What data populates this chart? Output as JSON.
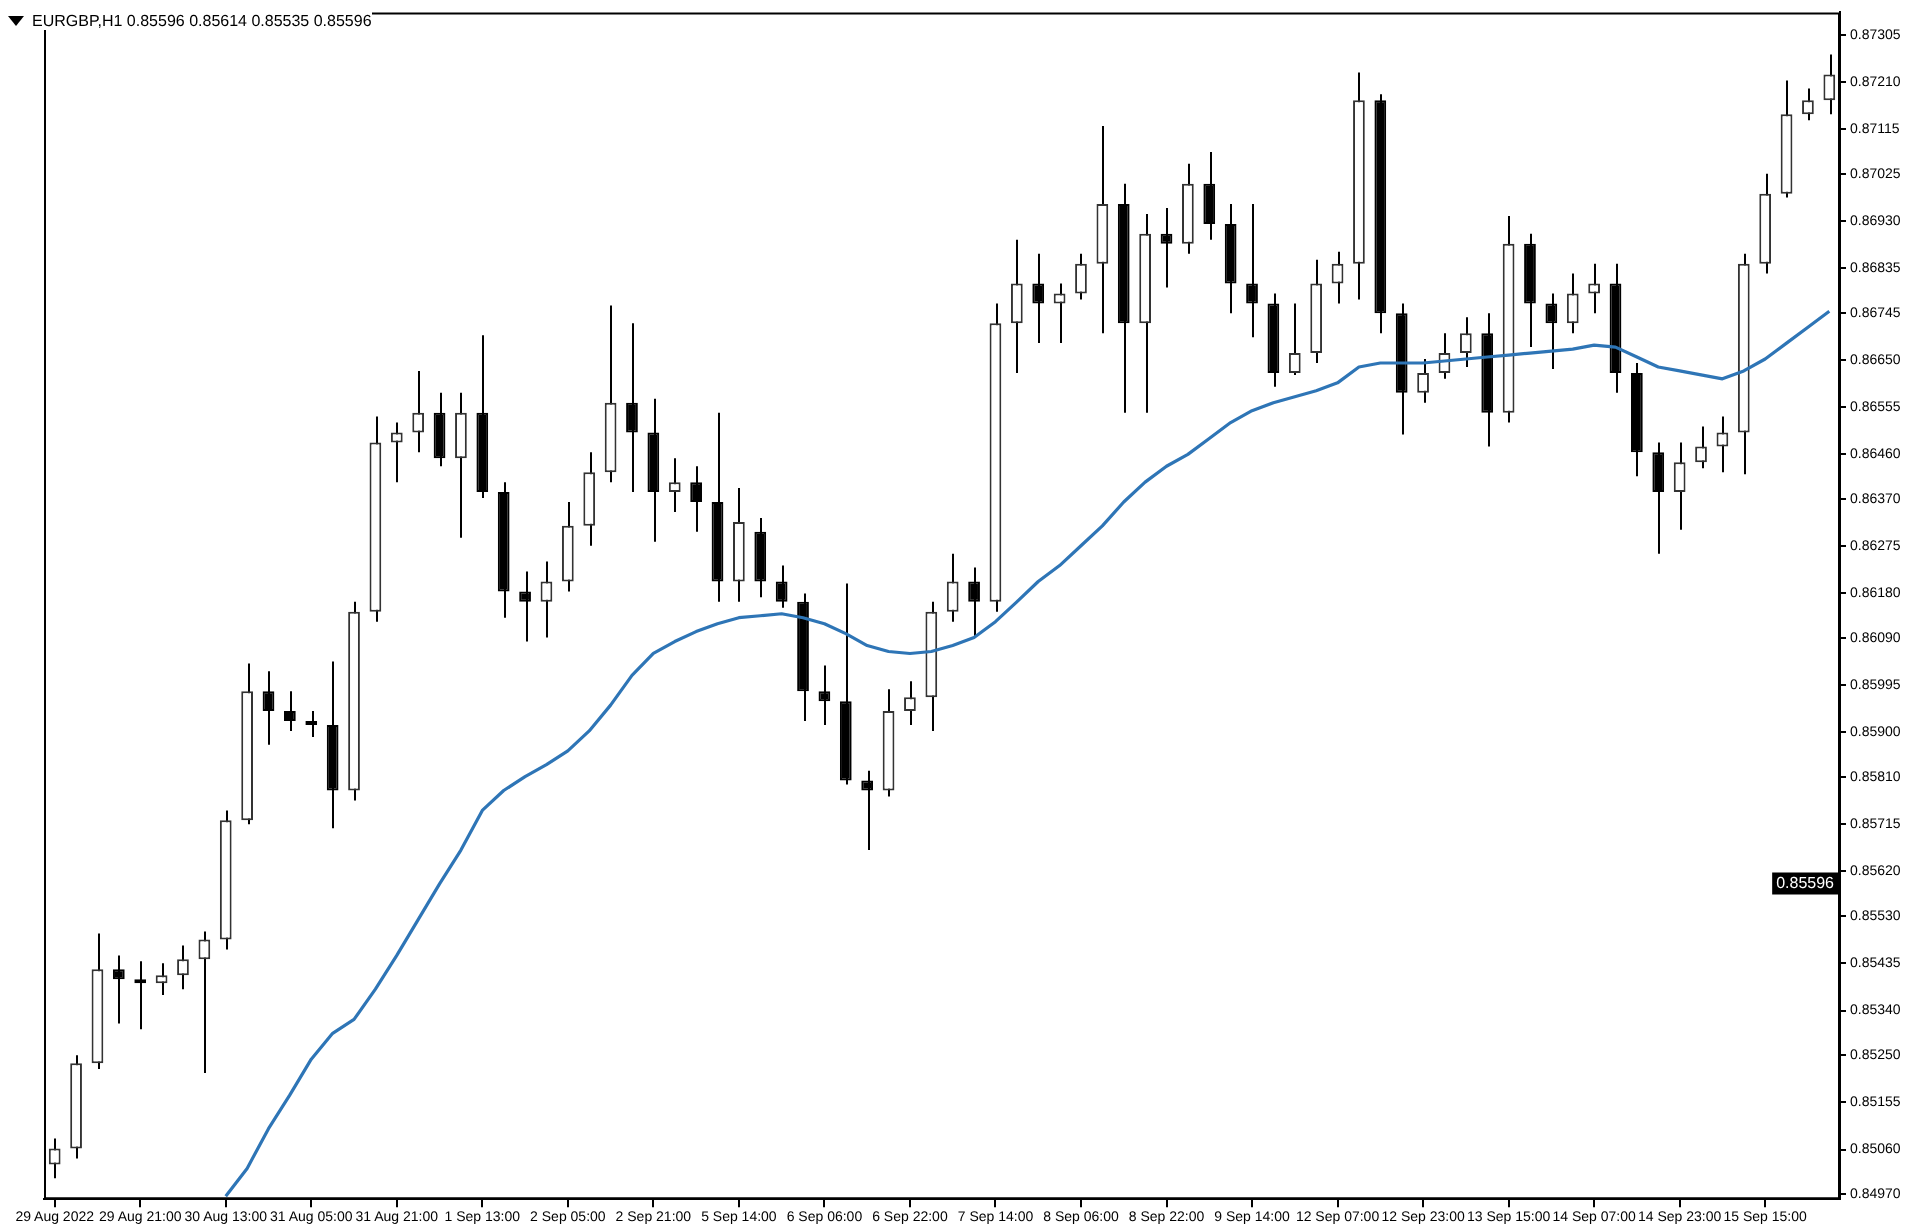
{
  "chart_data": {
    "type": "candlestick",
    "title": "EURGBP,H1  0.85596 0.85614 0.85535 0.85596",
    "categories": [
      "29 Aug 2022",
      null,
      null,
      null,
      "29 Aug 21:00",
      null,
      null,
      null,
      "30 Aug 13:00",
      null,
      null,
      null,
      "31 Aug 05:00",
      null,
      null,
      null,
      "31 Aug 21:00",
      null,
      null,
      null,
      "1 Sep 13:00",
      null,
      null,
      null,
      "2 Sep 05:00",
      null,
      null,
      null,
      "2 Sep 21:00",
      null,
      null,
      null,
      "5 Sep 14:00",
      null,
      null,
      null,
      "6 Sep 06:00",
      null,
      null,
      null,
      "6 Sep 22:00",
      null,
      null,
      null,
      "7 Sep 14:00",
      null,
      null,
      null,
      "8 Sep 06:00",
      null,
      null,
      null,
      "8 Sep 22:00",
      null,
      null,
      null,
      "9 Sep 14:00",
      null,
      null,
      null,
      "12 Sep 07:00",
      null,
      null,
      null,
      "12 Sep 23:00",
      null,
      null,
      null,
      "13 Sep 15:00",
      null,
      null,
      null,
      "14 Sep 07:00",
      null,
      null,
      null,
      "14 Sep 23:00",
      null,
      null,
      null,
      "15 Sep 15:00",
      null,
      null,
      null
    ],
    "ohlc": [
      [
        0.8503,
        0.85082,
        0.85002,
        0.85062
      ],
      [
        0.85062,
        0.8525,
        0.85042,
        0.85234
      ],
      [
        0.85234,
        0.85495,
        0.85222,
        0.85423
      ],
      [
        0.85423,
        0.85451,
        0.85314,
        0.85403
      ],
      [
        0.85403,
        0.85439,
        0.85302,
        0.85395
      ],
      [
        0.85395,
        0.85435,
        0.85371,
        0.85411
      ],
      [
        0.85411,
        0.85471,
        0.85383,
        0.85443
      ],
      [
        0.85443,
        0.85499,
        0.85214,
        0.85483
      ],
      [
        0.85483,
        0.85743,
        0.85463,
        0.85723
      ],
      [
        0.85723,
        0.86039,
        0.85715,
        0.85983
      ],
      [
        0.85983,
        0.86023,
        0.85875,
        0.85943
      ],
      [
        0.85943,
        0.85983,
        0.85903,
        0.85923
      ],
      [
        0.85923,
        0.85943,
        0.85891,
        0.85915
      ],
      [
        0.85915,
        0.86043,
        0.85707,
        0.85783
      ],
      [
        0.85783,
        0.86163,
        0.85763,
        0.86143
      ],
      [
        0.86143,
        0.86536,
        0.86123,
        0.86484
      ],
      [
        0.86484,
        0.86524,
        0.86404,
        0.86504
      ],
      [
        0.86504,
        0.86628,
        0.86464,
        0.86544
      ],
      [
        0.86544,
        0.86584,
        0.86436,
        0.86452
      ],
      [
        0.86452,
        0.86584,
        0.86292,
        0.86544
      ],
      [
        0.86544,
        0.867,
        0.86372,
        0.86384
      ],
      [
        0.86384,
        0.86404,
        0.86131,
        0.86184
      ],
      [
        0.86184,
        0.86224,
        0.86083,
        0.86163
      ],
      [
        0.86163,
        0.86244,
        0.86091,
        0.86204
      ],
      [
        0.86204,
        0.86364,
        0.86184,
        0.86316
      ],
      [
        0.86316,
        0.86464,
        0.86276,
        0.86424
      ],
      [
        0.86424,
        0.8676,
        0.86404,
        0.86564
      ],
      [
        0.86564,
        0.86724,
        0.86384,
        0.86504
      ],
      [
        0.86504,
        0.86572,
        0.86284,
        0.86384
      ],
      [
        0.86384,
        0.86452,
        0.86344,
        0.86404
      ],
      [
        0.86404,
        0.86436,
        0.86304,
        0.86364
      ],
      [
        0.86364,
        0.86544,
        0.86163,
        0.86204
      ],
      [
        0.86204,
        0.86392,
        0.86163,
        0.86324
      ],
      [
        0.86304,
        0.86332,
        0.86172,
        0.86204
      ],
      [
        0.86204,
        0.86236,
        0.86151,
        0.86163
      ],
      [
        0.86163,
        0.8618,
        0.85923,
        0.85983
      ],
      [
        0.85983,
        0.86035,
        0.85915,
        0.85963
      ],
      [
        0.85963,
        0.862,
        0.85795,
        0.85803
      ],
      [
        0.85803,
        0.85823,
        0.85663,
        0.85783
      ],
      [
        0.85783,
        0.85987,
        0.85771,
        0.85943
      ],
      [
        0.85943,
        0.86003,
        0.85915,
        0.85971
      ],
      [
        0.85971,
        0.86163,
        0.85903,
        0.86143
      ],
      [
        0.86143,
        0.8626,
        0.86123,
        0.86204
      ],
      [
        0.86204,
        0.86232,
        0.86091,
        0.86163
      ],
      [
        0.86163,
        0.86764,
        0.86143,
        0.86724
      ],
      [
        0.86724,
        0.86892,
        0.86624,
        0.86804
      ],
      [
        0.86804,
        0.86864,
        0.86684,
        0.86764
      ],
      [
        0.86764,
        0.86804,
        0.86684,
        0.86784
      ],
      [
        0.86784,
        0.86864,
        0.86772,
        0.86844
      ],
      [
        0.86844,
        0.87121,
        0.86704,
        0.86964
      ],
      [
        0.86964,
        0.87005,
        0.86544,
        0.86724
      ],
      [
        0.86724,
        0.86944,
        0.86544,
        0.86904
      ],
      [
        0.86904,
        0.86956,
        0.86796,
        0.86884
      ],
      [
        0.86884,
        0.87045,
        0.86864,
        0.87005
      ],
      [
        0.87005,
        0.87069,
        0.86892,
        0.86924
      ],
      [
        0.86924,
        0.86964,
        0.86744,
        0.86804
      ],
      [
        0.86804,
        0.86964,
        0.86696,
        0.86764
      ],
      [
        0.86764,
        0.86784,
        0.86596,
        0.86624
      ],
      [
        0.86624,
        0.86764,
        0.8662,
        0.86664
      ],
      [
        0.86664,
        0.86852,
        0.86644,
        0.86804
      ],
      [
        0.86804,
        0.86868,
        0.86764,
        0.86844
      ],
      [
        0.86844,
        0.87229,
        0.86772,
        0.87173
      ],
      [
        0.87173,
        0.87185,
        0.86704,
        0.86744
      ],
      [
        0.86744,
        0.86764,
        0.865,
        0.86584
      ],
      [
        0.86584,
        0.86652,
        0.86564,
        0.86624
      ],
      [
        0.86624,
        0.86704,
        0.86612,
        0.86664
      ],
      [
        0.86664,
        0.86736,
        0.86636,
        0.86704
      ],
      [
        0.86704,
        0.86744,
        0.86476,
        0.86544
      ],
      [
        0.86544,
        0.8694,
        0.86524,
        0.86884
      ],
      [
        0.86884,
        0.86904,
        0.86676,
        0.86764
      ],
      [
        0.86764,
        0.86784,
        0.86632,
        0.86724
      ],
      [
        0.86724,
        0.86824,
        0.86704,
        0.86784
      ],
      [
        0.86784,
        0.86844,
        0.86744,
        0.86804
      ],
      [
        0.86804,
        0.86844,
        0.86584,
        0.86624
      ],
      [
        0.86624,
        0.86644,
        0.86416,
        0.86464
      ],
      [
        0.86464,
        0.86484,
        0.8626,
        0.86384
      ],
      [
        0.86384,
        0.86484,
        0.86308,
        0.86444
      ],
      [
        0.86444,
        0.86516,
        0.86432,
        0.86476
      ],
      [
        0.86476,
        0.86536,
        0.86424,
        0.86504
      ],
      [
        0.86504,
        0.86864,
        0.8642,
        0.86844
      ],
      [
        0.86844,
        0.87025,
        0.86824,
        0.86985
      ],
      [
        0.86985,
        0.87213,
        0.86977,
        0.87145
      ],
      [
        0.87145,
        0.87197,
        0.87133,
        0.87173
      ],
      [
        0.87173,
        0.87265,
        0.87145,
        0.87225
      ]
    ],
    "series": [
      {
        "type": "line",
        "color": "#2e75b6",
        "values": [
          null,
          null,
          null,
          null,
          null,
          null,
          null,
          null,
          0.84966,
          0.85022,
          0.85102,
          0.8517,
          0.85242,
          0.85294,
          0.85322,
          0.85383,
          0.85451,
          0.85523,
          0.85595,
          0.85663,
          0.85743,
          0.85783,
          0.85811,
          0.85835,
          0.85863,
          0.85903,
          0.85955,
          0.86015,
          0.86059,
          0.86083,
          0.86103,
          0.86119,
          0.86131,
          0.86135,
          0.86139,
          0.86131,
          0.86119,
          0.86099,
          0.86075,
          0.86063,
          0.86059,
          0.86063,
          0.86075,
          0.86091,
          0.86123,
          0.86163,
          0.86204,
          0.86236,
          0.86276,
          0.86316,
          0.86364,
          0.86404,
          0.86436,
          0.8646,
          0.86492,
          0.86524,
          0.86548,
          0.86564,
          0.86576,
          0.86588,
          0.86604,
          0.86636,
          0.86644,
          0.86644,
          0.86644,
          0.86648,
          0.86652,
          0.86656,
          0.8666,
          0.86664,
          0.86668,
          0.86672,
          0.8668,
          0.86676,
          0.86656,
          0.86636,
          0.86628,
          0.8662,
          0.86612,
          0.86628,
          0.86652,
          0.86684,
          0.86716,
          0.86748
        ]
      }
    ],
    "ylim": [
      0.8496,
      0.8735
    ],
    "yticks": [
      {
        "value": 0.8497,
        "label": "0.84970"
      },
      {
        "value": 0.8506,
        "label": "0.85060"
      },
      {
        "value": 0.85155,
        "label": "0.85155"
      },
      {
        "value": 0.8525,
        "label": "0.85250"
      },
      {
        "value": 0.8534,
        "label": "0.85340"
      },
      {
        "value": 0.85435,
        "label": "0.85435"
      },
      {
        "value": 0.8553,
        "label": "0.85530"
      },
      {
        "value": 0.8562,
        "label": "0.85620"
      },
      {
        "value": 0.85715,
        "label": "0.85715"
      },
      {
        "value": 0.8581,
        "label": "0.85810"
      },
      {
        "value": 0.859,
        "label": "0.85900"
      },
      {
        "value": 0.85995,
        "label": "0.85995"
      },
      {
        "value": 0.8609,
        "label": "0.86090"
      },
      {
        "value": 0.8618,
        "label": "0.86180"
      },
      {
        "value": 0.86275,
        "label": "0.86275"
      },
      {
        "value": 0.8637,
        "label": "0.86370"
      },
      {
        "value": 0.8646,
        "label": "0.86460"
      },
      {
        "value": 0.86555,
        "label": "0.86555"
      },
      {
        "value": 0.8665,
        "label": "0.86650"
      },
      {
        "value": 0.86745,
        "label": "0.86745"
      },
      {
        "value": 0.86835,
        "label": "0.86835"
      },
      {
        "value": 0.8693,
        "label": "0.86930"
      },
      {
        "value": 0.87025,
        "label": "0.87025"
      },
      {
        "value": 0.87115,
        "label": "0.87115"
      },
      {
        "value": 0.8721,
        "label": "0.87210"
      },
      {
        "value": 0.87305,
        "label": "0.87305"
      }
    ],
    "annotations": [
      {
        "text": "0.85596",
        "y": 0.85596
      }
    ],
    "grid": false,
    "legend": false
  }
}
